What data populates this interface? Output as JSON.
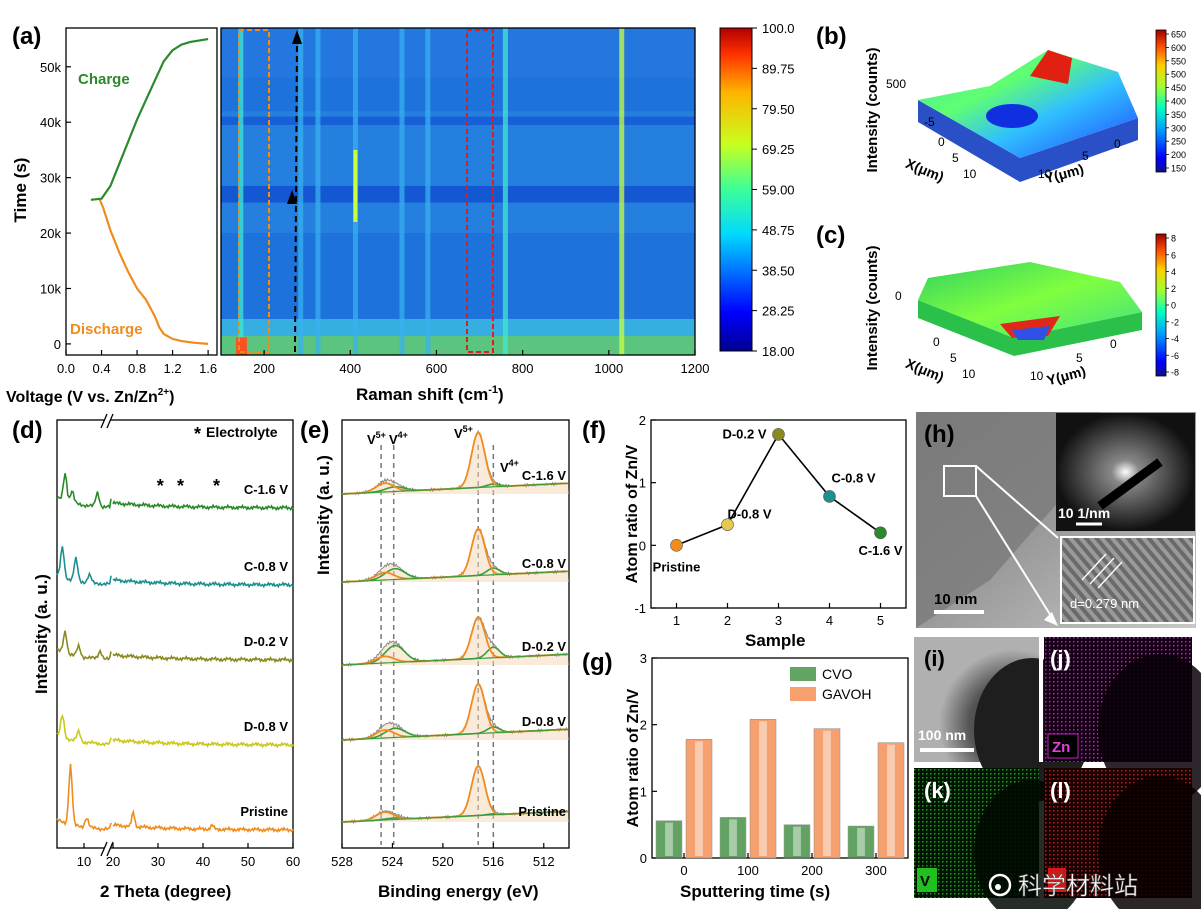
{
  "panels": {
    "a": "(a)",
    "b": "(b)",
    "c": "(c)",
    "d": "(d)",
    "e": "(e)",
    "f": "(f)",
    "g": "(g)",
    "h": "(h)",
    "i": "(i)",
    "j": "(j)",
    "k": "(k)",
    "l": "(l)"
  },
  "colors": {
    "charge": "#2a8a2a",
    "discharge": "#f08c1e",
    "cvo": "#3c8c3c",
    "gavoh": "#f5a06e",
    "zn_map": "#c020c0",
    "v_map": "#20a020",
    "o_map": "#d01818"
  },
  "watermark": "科学材料站",
  "chart_data": [
    {
      "id": "a-left",
      "type": "line",
      "xlabel": "Voltage (V vs. Zn/Zn2+)",
      "xlabel_main": "Voltage (V vs. Zn/Zn",
      "xlabel_sup": "2+",
      "xlabel_end": ")",
      "ylabel": "Time (s)",
      "xlim": [
        0.0,
        1.7
      ],
      "ylim": [
        -2000,
        57000
      ],
      "xticks": [
        "0.0",
        "0.4",
        "0.8",
        "1.2",
        "1.6"
      ],
      "yticks": [
        "0",
        "10k",
        "20k",
        "30k",
        "40k",
        "50k"
      ],
      "xtick_values": [
        0.0,
        0.4,
        0.8,
        1.2,
        1.6
      ],
      "ytick_values": [
        0,
        10000,
        20000,
        30000,
        40000,
        50000
      ],
      "series": [
        {
          "name": "Charge",
          "x": [
            0.28,
            0.4,
            0.5,
            0.6,
            0.7,
            0.8,
            0.9,
            1.0,
            1.1,
            1.2,
            1.3,
            1.4,
            1.6
          ],
          "y": [
            26000,
            26200,
            28500,
            32500,
            36500,
            40500,
            44000,
            47500,
            51000,
            53000,
            54000,
            54500,
            55000
          ]
        },
        {
          "name": "Discharge",
          "x": [
            0.38,
            0.42,
            0.5,
            0.6,
            0.7,
            0.8,
            0.9,
            1.0,
            1.05,
            1.1,
            1.2,
            1.3,
            1.45,
            1.6
          ],
          "y": [
            26000,
            24500,
            20500,
            16500,
            13000,
            10000,
            8000,
            5000,
            3000,
            1800,
            900,
            500,
            200,
            0
          ]
        }
      ]
    },
    {
      "id": "a-map",
      "type": "heatmap",
      "xlabel": "Raman shift (cm-1)",
      "xlabel_main": "Raman shift (cm",
      "xlabel_sup": "-1",
      "xlabel_end": ")",
      "xlim": [
        100,
        1200
      ],
      "ylim": [
        -2000,
        57000
      ],
      "xticks": [
        "200",
        "400",
        "600",
        "800",
        "1000",
        "1200"
      ],
      "xtick_values": [
        200,
        400,
        600,
        800,
        1000,
        1200
      ],
      "bands": [
        {
          "x": 146,
          "level": 0.55
        },
        {
          "x": 285,
          "level": 0.45
        },
        {
          "x": 325,
          "level": 0.4
        },
        {
          "x": 412,
          "level": 0.5
        },
        {
          "x": 520,
          "level": 0.35
        },
        {
          "x": 580,
          "level": 0.33
        },
        {
          "x": 760,
          "level": 0.55
        },
        {
          "x": 1030,
          "level": 0.75
        }
      ],
      "colorbar": {
        "ticks": [
          "100.0",
          "89.75",
          "79.50",
          "69.25",
          "59.00",
          "48.75",
          "38.50",
          "28.25",
          "18.00"
        ],
        "range": [
          18.0,
          100.0
        ]
      }
    },
    {
      "id": "b",
      "type": "heatmap",
      "xlabel": "X(μm)",
      "ylabel": "Intensity (counts)",
      "zlabel": "Y(μm)",
      "xticks": [
        "-5",
        "0",
        "5",
        "10"
      ],
      "yticks": [
        "10",
        "5",
        "0"
      ],
      "zticks": [
        "500"
      ],
      "colorbar": {
        "ticks": [
          "650",
          "600",
          "550",
          "500",
          "450",
          "400",
          "350",
          "300",
          "250",
          "200",
          "150"
        ],
        "range": [
          120,
          670
        ]
      }
    },
    {
      "id": "c",
      "type": "heatmap",
      "xlabel": "X(μm)",
      "ylabel": "Intensity (counts)",
      "zlabel": "Y(μm)",
      "xticks": [
        "0",
        "5",
        "10"
      ],
      "yticks": [
        "10",
        "5",
        "0"
      ],
      "zticks": [
        "0"
      ],
      "colorbar": {
        "ticks": [
          "8",
          "6",
          "4",
          "2",
          "0",
          "-2",
          "-4",
          "-6",
          "-8"
        ],
        "range": [
          -9,
          9
        ]
      }
    },
    {
      "id": "d",
      "type": "line",
      "xlabel": "2 Theta (degree)",
      "ylabel": "Intensity (a. u.)",
      "xticks": [
        "10",
        "20",
        "30",
        "40",
        "50",
        "60"
      ],
      "xtick_values": [
        10,
        20,
        30,
        40,
        50,
        60
      ],
      "xlim": [
        5,
        60
      ],
      "axis_break": [
        15,
        20
      ],
      "legend": "Electrolyte",
      "star_positions": [
        30.5,
        35,
        43
      ],
      "series": [
        {
          "name": "C-1.6 V",
          "color": "#2a8a2a",
          "offset": 4
        },
        {
          "name": "C-0.8 V",
          "color": "#1e8f8f",
          "offset": 3
        },
        {
          "name": "D-0.2 V",
          "color": "#8a8a1e",
          "offset": 2
        },
        {
          "name": "D-0.8 V",
          "color": "#c8c81e",
          "offset": 1
        },
        {
          "name": "Pristine",
          "color": "#f08c1e",
          "offset": 0
        }
      ]
    },
    {
      "id": "e",
      "type": "line",
      "xlabel": "Binding energy (eV)",
      "ylabel": "Intensity (a. u.)",
      "xticks": [
        "528",
        "524",
        "520",
        "516",
        "512"
      ],
      "xtick_values": [
        528,
        524,
        520,
        516,
        512
      ],
      "xlim": [
        528,
        510
      ],
      "peak_labels": {
        "v5_left": "V",
        "v5_left_sup": "5+",
        "v4_left": "V",
        "v4_left_sup": "4+",
        "v5_right": "V",
        "v5_right_sup": "5+",
        "v4_right": "V",
        "v4_right_sup": "4+"
      },
      "dashed_lines": [
        524.9,
        523.9,
        517.2,
        516.0
      ],
      "series": [
        {
          "name": "C-1.6 V",
          "v5": 1.0,
          "v4": 0.15
        },
        {
          "name": "C-0.8 V",
          "v5": 0.85,
          "v4": 0.35
        },
        {
          "name": "D-0.2 V",
          "v5": 0.75,
          "v4": 0.55
        },
        {
          "name": "D-0.8 V",
          "v5": 0.9,
          "v4": 0.3
        },
        {
          "name": "Pristine",
          "v5": 0.9,
          "v4": 0.05
        }
      ]
    },
    {
      "id": "f",
      "type": "scatter",
      "xlabel": "Sample",
      "ylabel": "Atom ratio of Zn/V",
      "xlim": [
        0.5,
        5.5
      ],
      "ylim": [
        -1,
        2
      ],
      "xticks": [
        "1",
        "2",
        "3",
        "4",
        "5"
      ],
      "yticks": [
        "-1",
        "0",
        "1",
        "2"
      ],
      "xtick_values": [
        1,
        2,
        3,
        4,
        5
      ],
      "ytick_values": [
        -1,
        0,
        1,
        2
      ],
      "points": [
        {
          "x": 1,
          "y": 0.0,
          "label": "Pristine",
          "color": "#f08c1e"
        },
        {
          "x": 2,
          "y": 0.33,
          "label": "D-0.8 V",
          "color": "#e6c850"
        },
        {
          "x": 3,
          "y": 1.77,
          "label": "D-0.2 V",
          "color": "#8a8a1e"
        },
        {
          "x": 4,
          "y": 0.78,
          "label": "C-0.8 V",
          "color": "#1e8f8f"
        },
        {
          "x": 5,
          "y": 0.2,
          "label": "C-1.6 V",
          "color": "#2a8a2a"
        }
      ]
    },
    {
      "id": "g",
      "type": "bar",
      "xlabel": "Sputtering time (s)",
      "ylabel": "Atom ratio of Zn/V",
      "ylim": [
        0,
        3
      ],
      "categories": [
        "0",
        "100",
        "200",
        "300"
      ],
      "yticks": [
        "0",
        "1",
        "2",
        "3"
      ],
      "ytick_values": [
        0,
        1,
        2,
        3
      ],
      "series": [
        {
          "name": "CVO",
          "values": [
            0.56,
            0.61,
            0.5,
            0.48
          ]
        },
        {
          "name": "GAVOH",
          "values": [
            1.78,
            2.08,
            1.94,
            1.73
          ]
        }
      ]
    }
  ],
  "images": {
    "h_scale": "10 nm",
    "h_fft_scale": "10 1/nm",
    "h_lattice": "d=0.279 nm",
    "i_scale": "100 nm",
    "j_element": "Zn",
    "k_element": "V"
  }
}
